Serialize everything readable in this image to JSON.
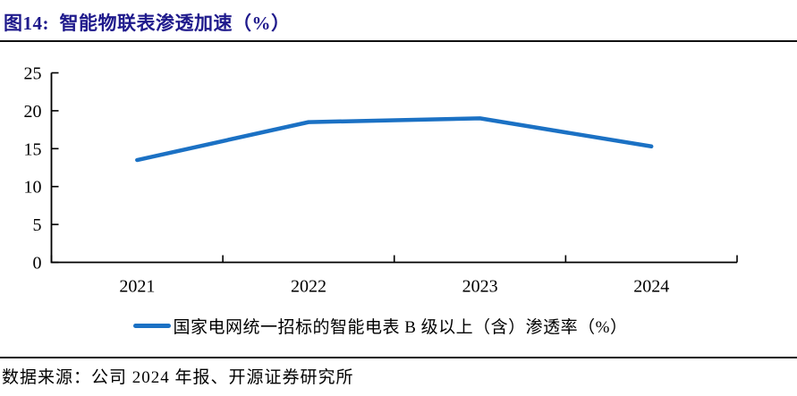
{
  "header": {
    "title": "图14:  智能物联表渗透加速（%）"
  },
  "colors": {
    "accent": "#1F1A8C",
    "line": "#1B71C4",
    "axis": "#000000"
  },
  "chart_data": {
    "type": "line",
    "categories": [
      "2021",
      "2022",
      "2023",
      "2024"
    ],
    "series": [
      {
        "name": "国家电网统一招标的智能电表 B 级以上（含）渗透率（%）",
        "values": [
          13.5,
          18.5,
          19.0,
          15.3
        ]
      }
    ],
    "title": "智能物联表渗透加速（%）",
    "xlabel": "",
    "ylabel": "",
    "ylim": [
      0,
      25
    ],
    "yticks": [
      0,
      5,
      10,
      15,
      20,
      25
    ],
    "grid": false,
    "legend_position": "bottom",
    "tick_direction": "inside"
  },
  "legend": {
    "label": "国家电网统一招标的智能电表 B 级以上（含）渗透率（%）"
  },
  "footer": {
    "source": "数据来源：公司 2024 年报、开源证券研究所"
  }
}
